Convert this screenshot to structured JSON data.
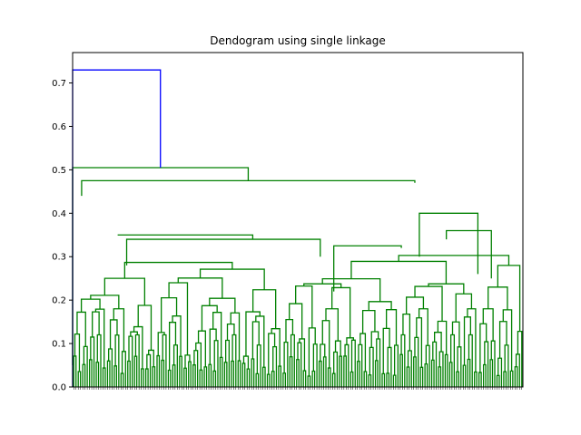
{
  "chart_data": {
    "type": "dendrogram",
    "title": "Dendogram using single linkage",
    "xlabel": "",
    "ylabel": "",
    "ylim": [
      0,
      0.77
    ],
    "yticks": [
      "0.0",
      "0.1",
      "0.2",
      "0.3",
      "0.4",
      "0.5",
      "0.6",
      "0.7"
    ],
    "leaf_count": 200,
    "colors": {
      "top_link": "#0000ff",
      "cluster": "#008000",
      "axes": "#000000"
    },
    "top_merge": {
      "height": 0.73,
      "left_height": 0.0,
      "right_height": 0.505
    },
    "major_links": [
      {
        "left": [
          0.0,
          0.05
        ],
        "right": [
          0.39,
          0.475
        ],
        "height": 0.505
      },
      {
        "left": [
          0.02,
          0.44
        ],
        "right": [
          0.76,
          0.47
        ],
        "height": 0.475
      },
      {
        "left": [
          0.1,
          0.35
        ],
        "right": [
          0.4,
          0.34
        ],
        "height": 0.35
      },
      {
        "left": [
          0.12,
          0.28
        ],
        "right": [
          0.55,
          0.3
        ],
        "height": 0.34
      },
      {
        "left": [
          0.58,
          0.22
        ],
        "right": [
          0.73,
          0.32
        ],
        "height": 0.325
      },
      {
        "left": [
          0.77,
          0.3
        ],
        "right": [
          0.9,
          0.26
        ],
        "height": 0.4
      },
      {
        "left": [
          0.83,
          0.34
        ],
        "right": [
          0.93,
          0.25
        ],
        "height": 0.36
      }
    ]
  }
}
